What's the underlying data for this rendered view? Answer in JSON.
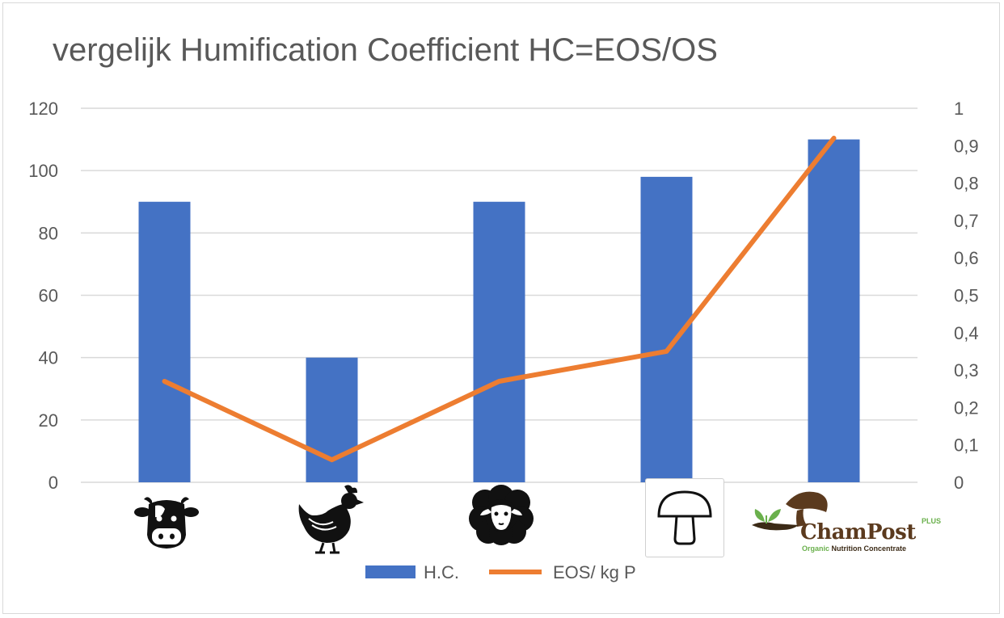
{
  "chart_data": {
    "type": "bar",
    "title": "vergelijk Humification Coefficient HC=EOS/OS",
    "categories": [
      "cow-icon",
      "chicken-icon",
      "sheep-icon",
      "mushroom-icon",
      "champost-logo"
    ],
    "series": [
      {
        "name": "H.C.",
        "type": "bar",
        "axis": "left",
        "color": "#4472c4",
        "values": [
          90,
          40,
          90,
          98,
          110
        ]
      },
      {
        "name": "EOS/ kg P",
        "type": "line",
        "axis": "right",
        "color": "#ed7d31",
        "values": [
          0.27,
          0.06,
          0.27,
          0.35,
          0.92
        ]
      }
    ],
    "y_left": {
      "ylim": [
        0,
        120
      ],
      "ticks": [
        "0",
        "20",
        "40",
        "60",
        "80",
        "100",
        "120"
      ]
    },
    "y_right": {
      "ylim": [
        0,
        1
      ],
      "ticks": [
        "0",
        "0,1",
        "0,2",
        "0,3",
        "0,4",
        "0,5",
        "0,6",
        "0,7",
        "0,8",
        "0,9",
        "1"
      ]
    },
    "grid": true,
    "legend_position": "bottom"
  },
  "logo": {
    "name": "ChamPost",
    "plus": "PLUS",
    "tagline_1": "Organic",
    "tagline_2": "Nutrition Concentrate"
  }
}
